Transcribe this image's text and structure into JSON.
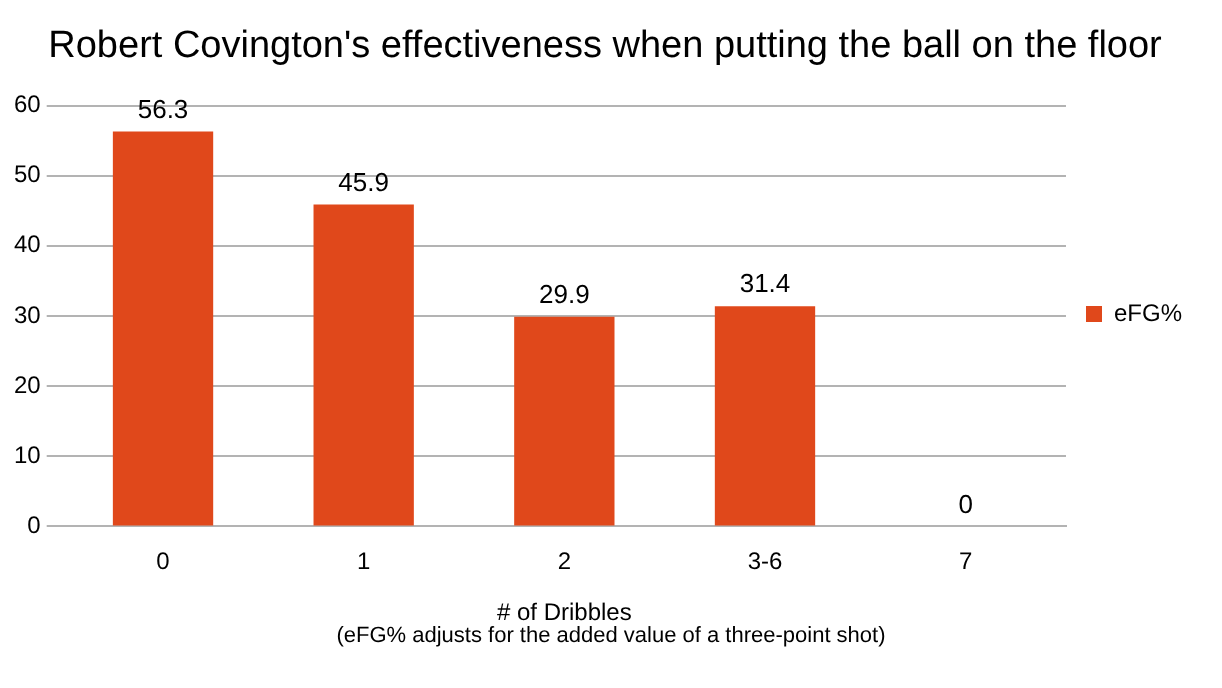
{
  "chart_data": {
    "type": "bar",
    "title": "Robert Covington's effectiveness when putting the ball on the floor",
    "xlabel": "# of Dribbles",
    "annotations": [
      "(eFG% adjusts for the added value of a three-point shot)"
    ],
    "categories": [
      "0",
      "1",
      "2",
      "3-6",
      "7"
    ],
    "series": [
      {
        "name": "eFG%",
        "color": "#e0481b",
        "values": [
          56.3,
          45.9,
          29.9,
          31.4,
          0
        ]
      }
    ],
    "ylim": [
      0,
      60
    ],
    "yticks": [
      0,
      10,
      20,
      30,
      40,
      50,
      60
    ],
    "grid": "y",
    "legend": "right",
    "data_labels": true
  }
}
